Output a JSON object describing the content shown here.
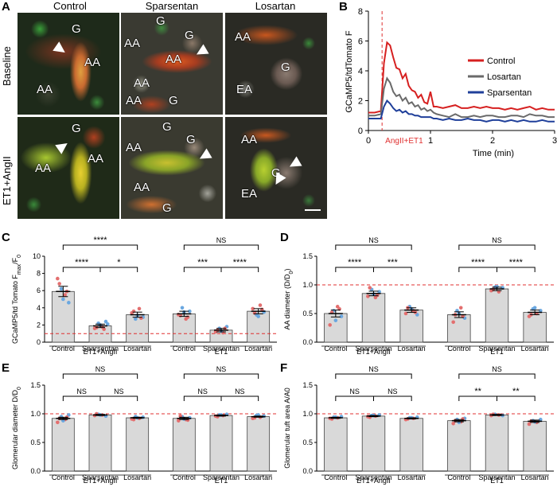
{
  "panel_letters": [
    "A",
    "B",
    "C",
    "D",
    "E",
    "F"
  ],
  "micrographs": {
    "column_titles": [
      "Control",
      "Sparsentan",
      "Losartan"
    ],
    "row_titles": [
      "Baseline",
      "ET1+AngII"
    ],
    "labels": {
      "r0c0": [
        "G",
        "AA",
        "AA"
      ],
      "r0c1": [
        "G",
        "AA",
        "G",
        "AA",
        "AA",
        "AA",
        "G"
      ],
      "r0c2": [
        "AA",
        "G",
        "EA"
      ],
      "r1c0": [
        "G",
        "AA",
        "AA"
      ],
      "r1c1": [
        "G",
        "AA",
        "G",
        "AA",
        "G"
      ],
      "r1c2": [
        "AA",
        "G",
        "EA"
      ]
    }
  },
  "chart_data": [
    {
      "id": "B",
      "type": "line",
      "xlabel": "Time (min)",
      "ylabel": "GCaMP5/tdTomato F",
      "xlim": [
        0,
        3
      ],
      "ylim": [
        0,
        8
      ],
      "xticks": [
        0,
        1,
        2,
        3
      ],
      "yticks": [
        0,
        2,
        4,
        6,
        8
      ],
      "annotation": "AngII+ET1",
      "legend_position": "top-right",
      "series": [
        {
          "name": "Control",
          "color": "#d62020",
          "x": [
            0,
            0.1,
            0.2,
            0.25,
            0.3,
            0.35,
            0.4,
            0.45,
            0.5,
            0.55,
            0.6,
            0.65,
            0.7,
            0.75,
            0.8,
            0.85,
            0.9,
            0.95,
            1.0,
            1.05,
            1.1,
            1.2,
            1.3,
            1.4,
            1.5,
            1.6,
            1.7,
            1.8,
            1.9,
            2.0,
            2.1,
            2.2,
            2.3,
            2.4,
            2.5,
            2.6,
            2.7,
            2.8,
            2.9,
            3.0
          ],
          "y": [
            1.2,
            1.2,
            1.3,
            4.5,
            5.9,
            5.7,
            4.9,
            4.2,
            4.1,
            3.5,
            3.8,
            3.0,
            2.7,
            2.6,
            2.2,
            2.4,
            1.9,
            1.8,
            2.6,
            1.6,
            1.6,
            1.5,
            1.6,
            1.7,
            1.5,
            1.5,
            1.6,
            1.5,
            1.6,
            1.5,
            1.5,
            1.4,
            1.5,
            1.4,
            1.5,
            1.6,
            1.4,
            1.5,
            1.4,
            1.4
          ]
        },
        {
          "name": "Losartan",
          "color": "#6a6a6a",
          "x": [
            0,
            0.1,
            0.2,
            0.25,
            0.3,
            0.35,
            0.4,
            0.45,
            0.5,
            0.55,
            0.6,
            0.65,
            0.7,
            0.75,
            0.8,
            0.85,
            0.9,
            0.95,
            1.0,
            1.05,
            1.1,
            1.2,
            1.3,
            1.4,
            1.5,
            1.6,
            1.7,
            1.8,
            1.9,
            2.0,
            2.1,
            2.2,
            2.3,
            2.4,
            2.5,
            2.6,
            2.7,
            2.8,
            2.9,
            3.0
          ],
          "y": [
            1.0,
            1.0,
            1.1,
            2.8,
            3.5,
            3.2,
            2.6,
            2.3,
            2.4,
            2.0,
            2.2,
            1.8,
            1.9,
            1.6,
            1.7,
            1.4,
            1.5,
            1.3,
            1.4,
            1.2,
            1.1,
            1.0,
            0.9,
            1.1,
            0.9,
            0.9,
            1.0,
            0.9,
            1.0,
            1.0,
            0.9,
            0.9,
            1.0,
            1.0,
            0.9,
            1.1,
            1.0,
            1.0,
            0.9,
            0.9
          ]
        },
        {
          "name": "Sparsentan",
          "color": "#1f3f9a",
          "x": [
            0,
            0.1,
            0.2,
            0.25,
            0.3,
            0.35,
            0.4,
            0.45,
            0.5,
            0.55,
            0.6,
            0.65,
            0.7,
            0.75,
            0.8,
            0.85,
            0.9,
            0.95,
            1.0,
            1.05,
            1.1,
            1.2,
            1.3,
            1.4,
            1.5,
            1.6,
            1.7,
            1.8,
            1.9,
            2.0,
            2.1,
            2.2,
            2.3,
            2.4,
            2.5,
            2.6,
            2.7,
            2.8,
            2.9,
            3.0
          ],
          "y": [
            0.8,
            0.8,
            0.8,
            1.6,
            2.0,
            1.8,
            1.5,
            1.3,
            1.4,
            1.2,
            1.3,
            1.1,
            1.1,
            1.0,
            1.0,
            0.9,
            0.9,
            0.9,
            0.9,
            0.8,
            0.8,
            0.7,
            0.8,
            0.7,
            0.7,
            0.8,
            0.7,
            0.7,
            0.6,
            0.7,
            0.7,
            0.6,
            0.7,
            0.6,
            0.7,
            0.6,
            0.6,
            0.7,
            0.6,
            0.6
          ]
        }
      ]
    },
    {
      "id": "C",
      "type": "bar",
      "ylabel": "GCaMP5/td Tomato F",
      "ylabel_sub": "max",
      "ylabel_suffix": "/F",
      "ylabel_sub2": "0",
      "ylim": [
        0,
        10
      ],
      "yticks": [
        0,
        2,
        4,
        6,
        8,
        10
      ],
      "reference_line": 1,
      "categories": [
        "Control",
        "Sparsentan",
        "Losartan",
        "Control",
        "Sparsentan",
        "Losartan"
      ],
      "groups": [
        "ET1+AngII",
        "ET1"
      ],
      "values": [
        5.9,
        1.9,
        3.2,
        3.3,
        1.4,
        3.6
      ],
      "errors": [
        0.6,
        0.2,
        0.3,
        0.3,
        0.2,
        0.3
      ],
      "points": [
        [
          7.4,
          6.2,
          5.5,
          4.6,
          6.8,
          5.0,
          5.9
        ],
        [
          1.6,
          2.2,
          1.8,
          2.4,
          1.7,
          2.0,
          1.5,
          2.1
        ],
        [
          3.4,
          2.7,
          3.9,
          2.9,
          3.6,
          3.1,
          2.8
        ],
        [
          3.2,
          4.0,
          2.7,
          3.6,
          3.1,
          3.5,
          2.9
        ],
        [
          1.2,
          1.6,
          1.1,
          1.8,
          1.4,
          1.3,
          1.6
        ],
        [
          3.9,
          3.2,
          4.3,
          3.5,
          3.4,
          3.0,
          3.8
        ]
      ],
      "point_colors": [
        "#e36f6f",
        "#6aa7e0"
      ],
      "brackets": [
        {
          "from": 0,
          "to": 2,
          "label": "****",
          "level": 2
        },
        {
          "from": 0,
          "to": 1,
          "label": "****",
          "level": 1
        },
        {
          "from": 1,
          "to": 2,
          "label": "*",
          "level": 1
        },
        {
          "from": 3,
          "to": 5,
          "label": "NS",
          "level": 2
        },
        {
          "from": 3,
          "to": 4,
          "label": "***",
          "level": 1
        },
        {
          "from": 4,
          "to": 5,
          "label": "****",
          "level": 1
        }
      ]
    },
    {
      "id": "D",
      "type": "bar",
      "ylabel": "AA diameter (D/D",
      "ylabel_sub": "0",
      "ylabel_suffix": ")",
      "ylim": [
        0,
        1.5
      ],
      "yticks": [
        0,
        0.5,
        1.0,
        1.5
      ],
      "reference_line": 1,
      "categories": [
        "Control",
        "Sparsentan",
        "Losartan",
        "Control",
        "Sparsentan",
        "Losartan"
      ],
      "groups": [
        "ET1+AngII",
        "ET1"
      ],
      "values": [
        0.5,
        0.85,
        0.56,
        0.48,
        0.93,
        0.52
      ],
      "errors": [
        0.06,
        0.04,
        0.04,
        0.05,
        0.03,
        0.04
      ],
      "points": [
        [
          0.3,
          0.55,
          0.62,
          0.45,
          0.52,
          0.38,
          0.58
        ],
        [
          0.8,
          0.92,
          0.78,
          0.88,
          0.95,
          0.84,
          0.82
        ],
        [
          0.5,
          0.62,
          0.55,
          0.48,
          0.6,
          0.58,
          0.52
        ],
        [
          0.35,
          0.55,
          0.6,
          0.42,
          0.48,
          0.5,
          0.45
        ],
        [
          0.9,
          0.96,
          0.88,
          0.95,
          0.92,
          0.97
        ],
        [
          0.45,
          0.58,
          0.5,
          0.55,
          0.48,
          0.6
        ]
      ],
      "point_colors": [
        "#e36f6f",
        "#6aa7e0"
      ],
      "brackets": [
        {
          "from": 0,
          "to": 2,
          "label": "NS",
          "level": 2
        },
        {
          "from": 0,
          "to": 1,
          "label": "****",
          "level": 1
        },
        {
          "from": 1,
          "to": 2,
          "label": "***",
          "level": 1
        },
        {
          "from": 3,
          "to": 5,
          "label": "NS",
          "level": 2
        },
        {
          "from": 3,
          "to": 4,
          "label": "****",
          "level": 1
        },
        {
          "from": 4,
          "to": 5,
          "label": "****",
          "level": 1
        }
      ]
    },
    {
      "id": "E",
      "type": "bar",
      "ylabel": "Glomerular diameter D/D",
      "ylabel_sub": "0",
      "ylabel_suffix": "",
      "ylim": [
        0,
        1.5
      ],
      "yticks": [
        0,
        0.5,
        1.0,
        1.5
      ],
      "reference_line": 1,
      "categories": [
        "Control",
        "Sparsentan",
        "Losartan",
        "Control",
        "Sparsentan",
        "Losartan"
      ],
      "groups": [
        "ET1+AngII",
        "ET1"
      ],
      "values": [
        0.92,
        0.98,
        0.93,
        0.92,
        0.97,
        0.95
      ],
      "errors": [
        0.02,
        0.01,
        0.01,
        0.02,
        0.01,
        0.01
      ],
      "points": [
        [
          0.85,
          0.95,
          0.9,
          0.98,
          0.92,
          0.88,
          0.94
        ],
        [
          0.97,
          0.99,
          0.98,
          0.96,
          1.0,
          0.98
        ],
        [
          0.91,
          0.95,
          0.92,
          0.94,
          0.9,
          0.93
        ],
        [
          0.88,
          0.95,
          0.9,
          0.93,
          0.96,
          0.91,
          0.89
        ],
        [
          0.96,
          0.98,
          0.97,
          0.99,
          0.95,
          0.98
        ],
        [
          0.92,
          0.97,
          0.94,
          0.96,
          0.93,
          0.98
        ]
      ],
      "point_colors": [
        "#e36f6f",
        "#6aa7e0"
      ],
      "brackets": [
        {
          "from": 0,
          "to": 2,
          "label": "NS",
          "level": 2
        },
        {
          "from": 0,
          "to": 1,
          "label": "NS",
          "level": 1
        },
        {
          "from": 1,
          "to": 2,
          "label": "NS",
          "level": 1
        },
        {
          "from": 3,
          "to": 5,
          "label": "NS",
          "level": 2
        },
        {
          "from": 3,
          "to": 4,
          "label": "NS",
          "level": 1
        },
        {
          "from": 4,
          "to": 5,
          "label": "NS",
          "level": 1
        }
      ]
    },
    {
      "id": "F",
      "type": "bar",
      "ylabel": "Glomerular tuft area A/A0",
      "ylabel_sub": "",
      "ylabel_suffix": "",
      "ylim": [
        0,
        1.5
      ],
      "yticks": [
        0,
        0.5,
        1.0,
        1.5
      ],
      "reference_line": 1,
      "categories": [
        "Control",
        "Sparsentan",
        "Losartan",
        "Control",
        "Sparsentan",
        "Losartan"
      ],
      "groups": [
        "ET1+AngII",
        "ET1"
      ],
      "values": [
        0.93,
        0.96,
        0.92,
        0.88,
        0.98,
        0.87
      ],
      "errors": [
        0.01,
        0.01,
        0.01,
        0.02,
        0.01,
        0.02
      ],
      "points": [
        [
          0.92,
          0.94,
          0.93,
          0.95,
          0.91,
          0.94
        ],
        [
          0.95,
          0.97,
          0.96,
          0.98,
          0.94,
          0.97
        ],
        [
          0.9,
          0.93,
          0.92,
          0.94,
          0.91,
          0.93
        ],
        [
          0.83,
          0.9,
          0.86,
          0.92,
          0.88,
          0.85,
          0.91
        ],
        [
          0.97,
          0.99,
          0.98,
          0.97,
          0.99
        ],
        [
          0.82,
          0.88,
          0.85,
          0.9,
          0.87,
          0.86
        ]
      ],
      "point_colors": [
        "#e36f6f",
        "#6aa7e0"
      ],
      "brackets": [
        {
          "from": 0,
          "to": 2,
          "label": "NS",
          "level": 2
        },
        {
          "from": 0,
          "to": 1,
          "label": "NS",
          "level": 1
        },
        {
          "from": 1,
          "to": 2,
          "label": "NS",
          "level": 1
        },
        {
          "from": 3,
          "to": 5,
          "label": "NS",
          "level": 2
        },
        {
          "from": 3,
          "to": 4,
          "label": "**",
          "level": 1
        },
        {
          "from": 4,
          "to": 5,
          "label": "**",
          "level": 1
        }
      ]
    }
  ]
}
